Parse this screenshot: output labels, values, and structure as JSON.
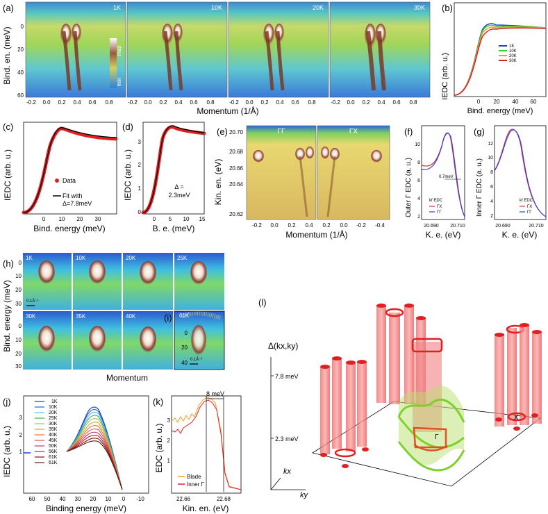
{
  "panels": {
    "a": {
      "tag": "(a)",
      "temps": [
        "1K",
        "10K",
        "20K",
        "30K"
      ],
      "ylabel": "Bind. en. (meV)",
      "yticks": [
        "0",
        "20",
        "40",
        "60"
      ],
      "xticks": [
        "-0.2",
        "0.0",
        "0.2",
        "0.4",
        "0.6",
        "0.8"
      ],
      "xlabel": "Momentum (1/Å)",
      "colorbar_max": "max",
      "colorbar_min": "min"
    },
    "b": {
      "tag": "(b)",
      "ylabel": "IEDC (arb. u.)",
      "xlabel": "Bind. energy (meV)",
      "xticks": [
        "0",
        "20",
        "40",
        "60"
      ],
      "legend": [
        "1K",
        "10K",
        "20K",
        "30K"
      ],
      "colors": [
        "#1f3fd1",
        "#2fd12f",
        "#f0a020",
        "#d42020"
      ]
    },
    "c": {
      "tag": "(c)",
      "ylabel": "IEDC (arb. u.)",
      "xlabel": "Bind. energy (meV)",
      "xticks": [
        "0",
        "10",
        "20",
        "30"
      ],
      "legend_data": "Data",
      "legend_fit_1": "Fit with",
      "legend_fit_2": "Δ=7.8meV"
    },
    "d": {
      "tag": "(d)",
      "ylabel": "IEDC (arb. u.)",
      "xlabel": "B. e. (meV)",
      "xticks": [
        "0",
        "5",
        "10",
        "15"
      ],
      "yticks": [
        "0",
        "1",
        "2",
        "3"
      ],
      "note_1": "Δ =",
      "note_2": "2.3meV"
    },
    "e": {
      "tag": "(e)",
      "ylabel": "Kin. en. (eV)",
      "yticks": [
        "20.70",
        "20.68",
        "20.66",
        "20.64",
        "20.62"
      ],
      "xticks_left": [
        "-0.2",
        "0.0",
        "0.2",
        "0.4"
      ],
      "xticks_right": [
        "0.2",
        "0.0",
        "-0.2",
        "-0.4"
      ],
      "xlabel": "Momentum (1/Å)",
      "label_left": "ΓΓ",
      "label_right": "ΓX"
    },
    "f": {
      "tag": "(f)",
      "ylabel": "Outer Γ EDC (a. u.)",
      "xlabel": "K. e. (eV)",
      "xticks": [
        "20.690",
        "20.710"
      ],
      "yticks": [
        "10",
        "8",
        "6",
        "4",
        "2"
      ],
      "annotation": "0.7meV",
      "legend_title": "kf EDC",
      "legend": [
        "ΓX",
        "ΓΓ"
      ]
    },
    "g": {
      "tag": "(g)",
      "ylabel": "Inner Γ EDC (a. u.)",
      "xlabel": "K. e. (eV)",
      "xticks": [
        "20.690",
        "20.710"
      ],
      "yticks": [
        "12",
        "10",
        "8",
        "6",
        "4",
        "2"
      ],
      "legend_title": "kf EDC",
      "legend": [
        "ΓX",
        "ΓΓ"
      ]
    },
    "h": {
      "tag": "(h)",
      "temps_top": [
        "1K",
        "10K",
        "20K",
        "25K"
      ],
      "temps_bottom": [
        "30K",
        "35K",
        "40K"
      ],
      "ylabel": "Bind. energy (meV)",
      "yticks": [
        "0",
        "10",
        "20",
        "30"
      ],
      "xlabel": "Momentum",
      "scale": "0.1Å⁻¹"
    },
    "i": {
      "tag": "(i)",
      "temp": "61K",
      "yticks": [
        "0",
        "20",
        "40"
      ],
      "scale": "0.1Å⁻¹"
    },
    "j": {
      "tag": "(j)",
      "ylabel": "IEDC (arb. u.)",
      "xlabel": "Binding energy (meV)",
      "xticks": [
        "60",
        "50",
        "40",
        "30",
        "20",
        "10",
        "0",
        "-10"
      ],
      "yticks": [
        "1",
        "2",
        "3"
      ],
      "legend": [
        "1K",
        "10K",
        "20K",
        "25K",
        "30K",
        "35K",
        "40K",
        "45K",
        "50K",
        "56K",
        "61K",
        "61K"
      ],
      "colors": [
        "#1f2fd6",
        "#1f5fe6",
        "#4fc0e0",
        "#3fb04f",
        "#8fd04f",
        "#e09f30",
        "#f07030",
        "#e05050",
        "#d02f6f",
        "#b02020",
        "#801010",
        "#502010"
      ]
    },
    "k": {
      "tag": "(k)",
      "ylabel": "EDC (arb. u.)",
      "xlabel": "Kin. en. (eV)",
      "xticks": [
        "22.66",
        "22.68"
      ],
      "yticks": [
        "1",
        "2",
        "3"
      ],
      "annotation": "8 meV",
      "legend": [
        "Blade",
        "Inner Γ"
      ]
    },
    "l": {
      "tag": "(l)",
      "axis_label": "Δ(kx,ky)",
      "level_high": "7.8 meV",
      "level_low": "2.3 meV",
      "kx": "kx",
      "ky": "ky",
      "point_gamma": "Γ",
      "point_x": "X"
    }
  }
}
